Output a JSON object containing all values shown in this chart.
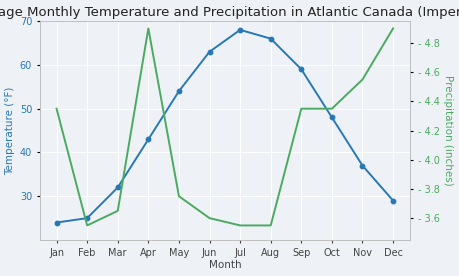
{
  "title": "Average Monthly Temperature and Precipitation in Atlantic Canada (Imperial)",
  "months": [
    "Jan",
    "Feb",
    "Mar",
    "Apr",
    "May",
    "Jun",
    "Jul",
    "Aug",
    "Sep",
    "Oct",
    "Nov",
    "Dec"
  ],
  "temperature_f": [
    24,
    25,
    32,
    43,
    54,
    63,
    68,
    66,
    59,
    48,
    37,
    29
  ],
  "precipitation_in": [
    4.35,
    3.55,
    3.65,
    4.9,
    3.75,
    3.6,
    3.55,
    3.55,
    4.35,
    4.35,
    4.55,
    4.9
  ],
  "temp_color": "#2878b4",
  "precip_color": "#4aaa60",
  "temp_ylim": [
    20,
    70
  ],
  "precip_ylim": [
    3.45,
    4.95
  ],
  "temp_yticks": [
    30,
    40,
    50,
    60,
    70
  ],
  "precip_yticks": [
    3.6,
    3.8,
    4.0,
    4.2,
    4.4,
    4.6,
    4.8
  ],
  "xlabel": "Month",
  "ylabel_left": "Temperature (°F)",
  "ylabel_right": "Precipitation (inches)",
  "background_color": "#eef2f7",
  "grid_color": "#ffffff",
  "title_fontsize": 9.5,
  "axis_label_fontsize": 7.5,
  "tick_fontsize": 7
}
